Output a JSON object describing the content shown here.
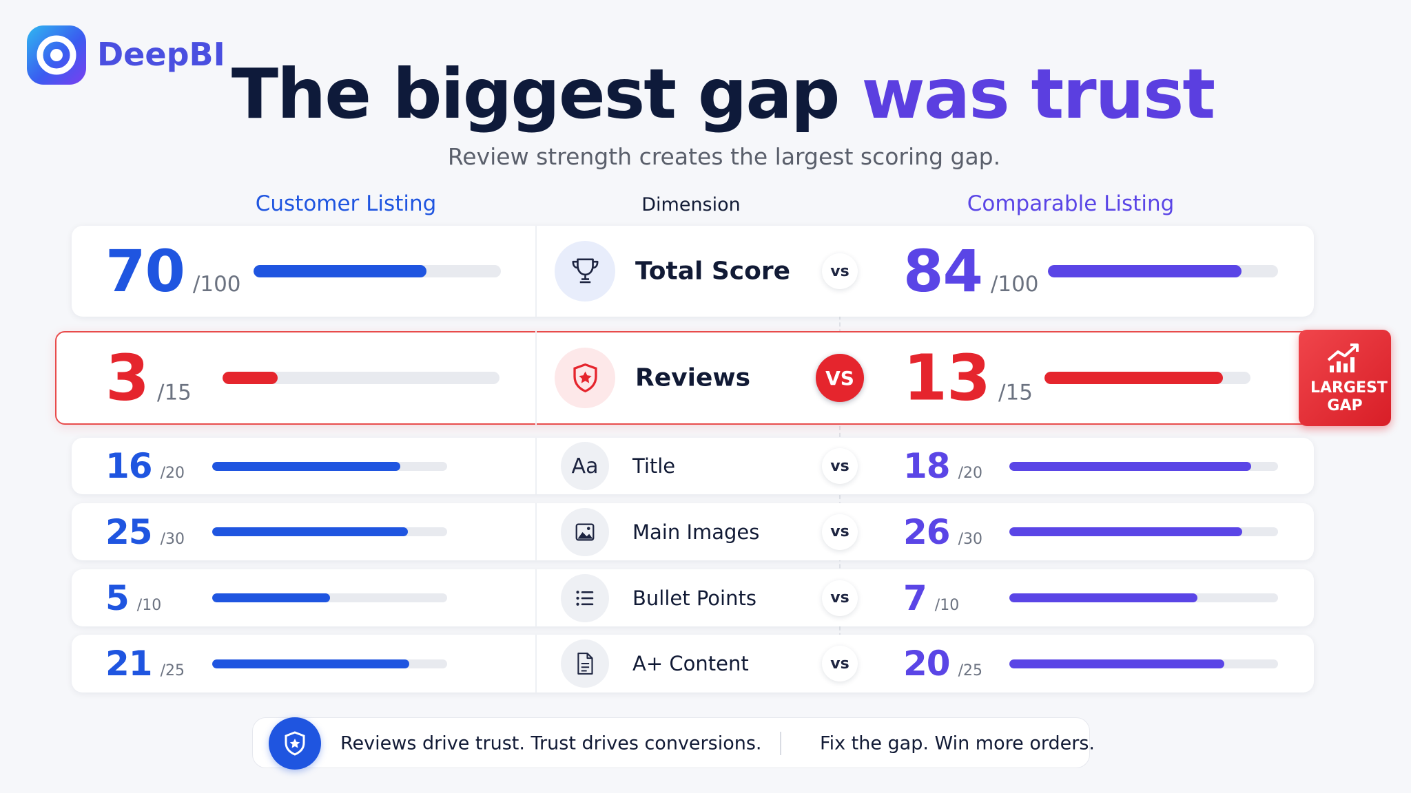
{
  "brand": "DeepBI",
  "title": {
    "main": "The biggest gap",
    "accent": "was trust"
  },
  "subtitle": "Review strength creates the largest scoring gap.",
  "headers": {
    "customer": "Customer Listing",
    "dimension": "Dimension",
    "comparable": "Comparable Listing"
  },
  "vs_label": "vs",
  "rows": [
    {
      "dimension": "Total Score",
      "customer": 70,
      "comparable": 84,
      "max": {
        "value": 100,
        "label": "/100"
      }
    },
    {
      "dimension": "Reviews",
      "customer": 3,
      "comparable": 13,
      "max": {
        "value": 15,
        "label": "/15"
      },
      "badge": "LARGEST GAP"
    },
    {
      "dimension": "Title",
      "icon_text": "Aa",
      "customer": 16,
      "comparable": 18,
      "max": {
        "value": 20,
        "label": "/20"
      }
    },
    {
      "dimension": "Main Images",
      "customer": 25,
      "comparable": 26,
      "max": {
        "value": 30,
        "label": "/30"
      }
    },
    {
      "dimension": "Bullet Points",
      "customer": 5,
      "comparable": 7,
      "max": {
        "value": 10,
        "label": "/10"
      }
    },
    {
      "dimension": "A+ Content",
      "customer": 21,
      "comparable": 20,
      "max": {
        "value": 25,
        "label": "/25"
      }
    }
  ],
  "footer": {
    "left": "Reviews drive trust. Trust drives conversions.",
    "right": "Fix the gap. Win more orders."
  }
}
